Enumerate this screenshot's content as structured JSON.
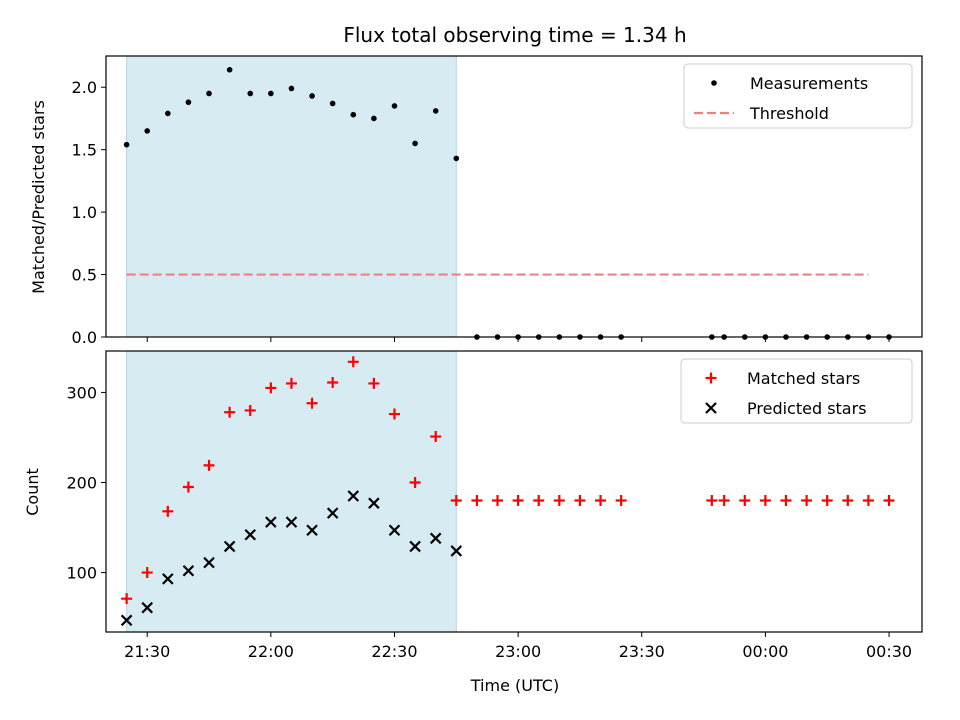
{
  "chart_data": {
    "type": "scatter",
    "title": "Flux total observing time = 1.34 h",
    "xlabel": "Time (UTC)",
    "xticks": [
      "21:30",
      "22:00",
      "22:30",
      "23:00",
      "23:30",
      "00:00",
      "00:30"
    ],
    "xticks_minutes": [
      1290,
      1320,
      1350,
      1380,
      1410,
      1440,
      1470
    ],
    "xlim_minutes": [
      1280,
      1478
    ],
    "shaded_region_minutes": [
      1285,
      1365
    ],
    "shade_color": "#add8e6",
    "panels": [
      {
        "ylabel": "Matched/Predicted stars",
        "ylim": [
          0,
          2.25
        ],
        "yticks": [
          "0.0",
          "0.5",
          "1.0",
          "1.5",
          "2.0"
        ],
        "yticks_values": [
          0,
          0.5,
          1.0,
          1.5,
          2.0
        ],
        "legend_position": "upper right",
        "series": [
          {
            "name": "Measurements",
            "marker": "dot",
            "color": "#000000",
            "x": [
              1285,
              1290,
              1295,
              1300,
              1305,
              1310,
              1315,
              1320,
              1325,
              1330,
              1335,
              1340,
              1345,
              1350,
              1355,
              1360,
              1365,
              1370,
              1375,
              1380,
              1385,
              1390,
              1395,
              1400,
              1405,
              1427,
              1430,
              1435,
              1440,
              1445,
              1450,
              1455,
              1460,
              1465,
              1470
            ],
            "y": [
              1.54,
              1.65,
              1.79,
              1.88,
              1.95,
              2.14,
              1.95,
              1.95,
              1.99,
              1.93,
              1.87,
              1.78,
              1.75,
              1.85,
              1.55,
              1.81,
              1.43,
              0,
              0,
              0,
              0,
              0,
              0,
              0,
              0,
              0,
              0,
              0,
              0,
              0,
              0,
              0,
              0,
              0,
              0
            ]
          },
          {
            "name": "Threshold",
            "marker": "dashed-line",
            "color": "#f08080",
            "x": [
              1285,
              1465
            ],
            "y": [
              0.5,
              0.5
            ]
          }
        ]
      },
      {
        "ylabel": "Count",
        "ylim": [
          34,
          346
        ],
        "yticks": [
          "100",
          "200",
          "300"
        ],
        "yticks_values": [
          100,
          200,
          300
        ],
        "legend_position": "upper right",
        "series": [
          {
            "name": "Matched stars",
            "marker": "plus",
            "color": "#ff0000",
            "x": [
              1285,
              1290,
              1295,
              1300,
              1305,
              1310,
              1315,
              1320,
              1325,
              1330,
              1335,
              1340,
              1345,
              1350,
              1355,
              1360,
              1365,
              1370,
              1375,
              1380,
              1385,
              1390,
              1395,
              1400,
              1405,
              1427,
              1430,
              1435,
              1440,
              1445,
              1450,
              1455,
              1460,
              1465,
              1470
            ],
            "y": [
              71,
              100,
              168,
              195,
              219,
              278,
              280,
              305,
              310,
              288,
              311,
              334,
              310,
              276,
              200,
              251,
              180,
              180,
              180,
              180,
              180,
              180,
              180,
              180,
              180,
              180,
              180,
              180,
              180,
              180,
              180,
              180,
              180,
              180,
              180
            ]
          },
          {
            "name": "Predicted stars",
            "marker": "x",
            "color": "#000000",
            "x": [
              1285,
              1290,
              1295,
              1300,
              1305,
              1310,
              1315,
              1320,
              1325,
              1330,
              1335,
              1340,
              1345,
              1350,
              1355,
              1360,
              1365
            ],
            "y": [
              47,
              61,
              93,
              102,
              111,
              129,
              142,
              156,
              156,
              147,
              166,
              185,
              177,
              147,
              129,
              138,
              124
            ]
          }
        ]
      }
    ]
  }
}
